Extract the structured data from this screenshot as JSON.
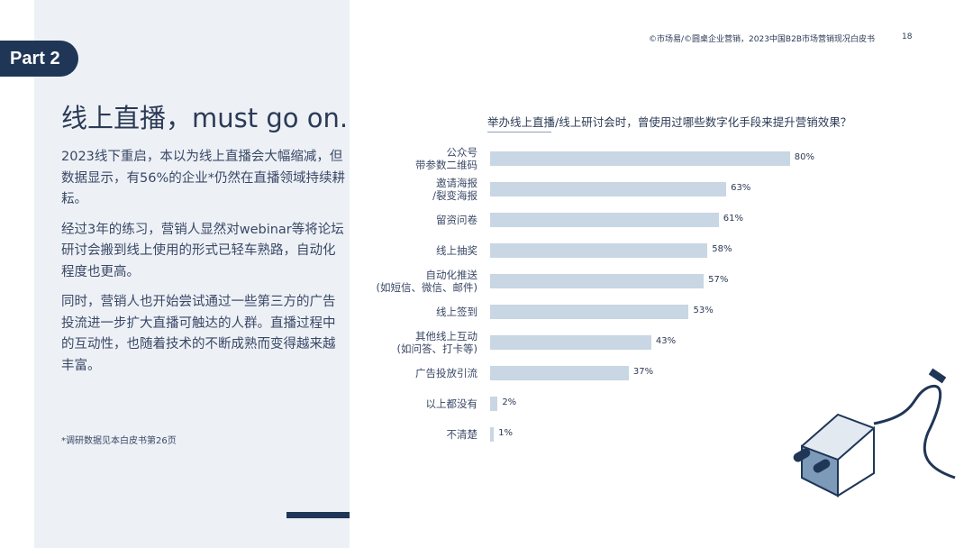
{
  "header": {
    "source": "©市场易/©圆桌企业营销，2023中国B2B市场营销现况白皮书",
    "page": "18"
  },
  "section": "Part 2",
  "title": "线上直播，must go on.",
  "paragraphs": [
    "2023线下重启，本以为线上直播会大幅缩减，但数据显示，有56%的企业*仍然在直播领域持续耕耘。",
    "经过3年的练习，营销人显然对webinar等将论坛研讨会搬到线上使用的形式已轻车熟路，自动化程度也更高。",
    "同时，营销人也开始尝试通过一些第三方的广告投流进一步扩大直播可触达的人群。直播过程中的互动性，也随着技术的不断成熟而变得越来越丰富。"
  ],
  "footnote": "*调研数据见本白皮书第26页",
  "chart_data": {
    "type": "bar",
    "orientation": "horizontal",
    "title": "举办线上直播/线上研讨会时，曾使用过哪些数字化手段来提升营销效果？",
    "categories": [
      "公众号\n带参数二维码",
      "邀请海报\n/裂变海报",
      "留资问卷",
      "线上抽奖",
      "自动化推送\n(如短信、微信、邮件)",
      "线上签到",
      "其他线上互动\n(如问答、打卡等)",
      "广告投放引流",
      "以上都没有",
      "不清楚"
    ],
    "values": [
      80,
      63,
      61,
      58,
      57,
      53,
      43,
      37,
      2,
      1
    ],
    "value_labels": [
      "80%",
      "63%",
      "61%",
      "58%",
      "57%",
      "53%",
      "43%",
      "37%",
      "2%",
      "1%"
    ],
    "color": "#c9d6e3",
    "xlim": [
      0,
      100
    ]
  }
}
